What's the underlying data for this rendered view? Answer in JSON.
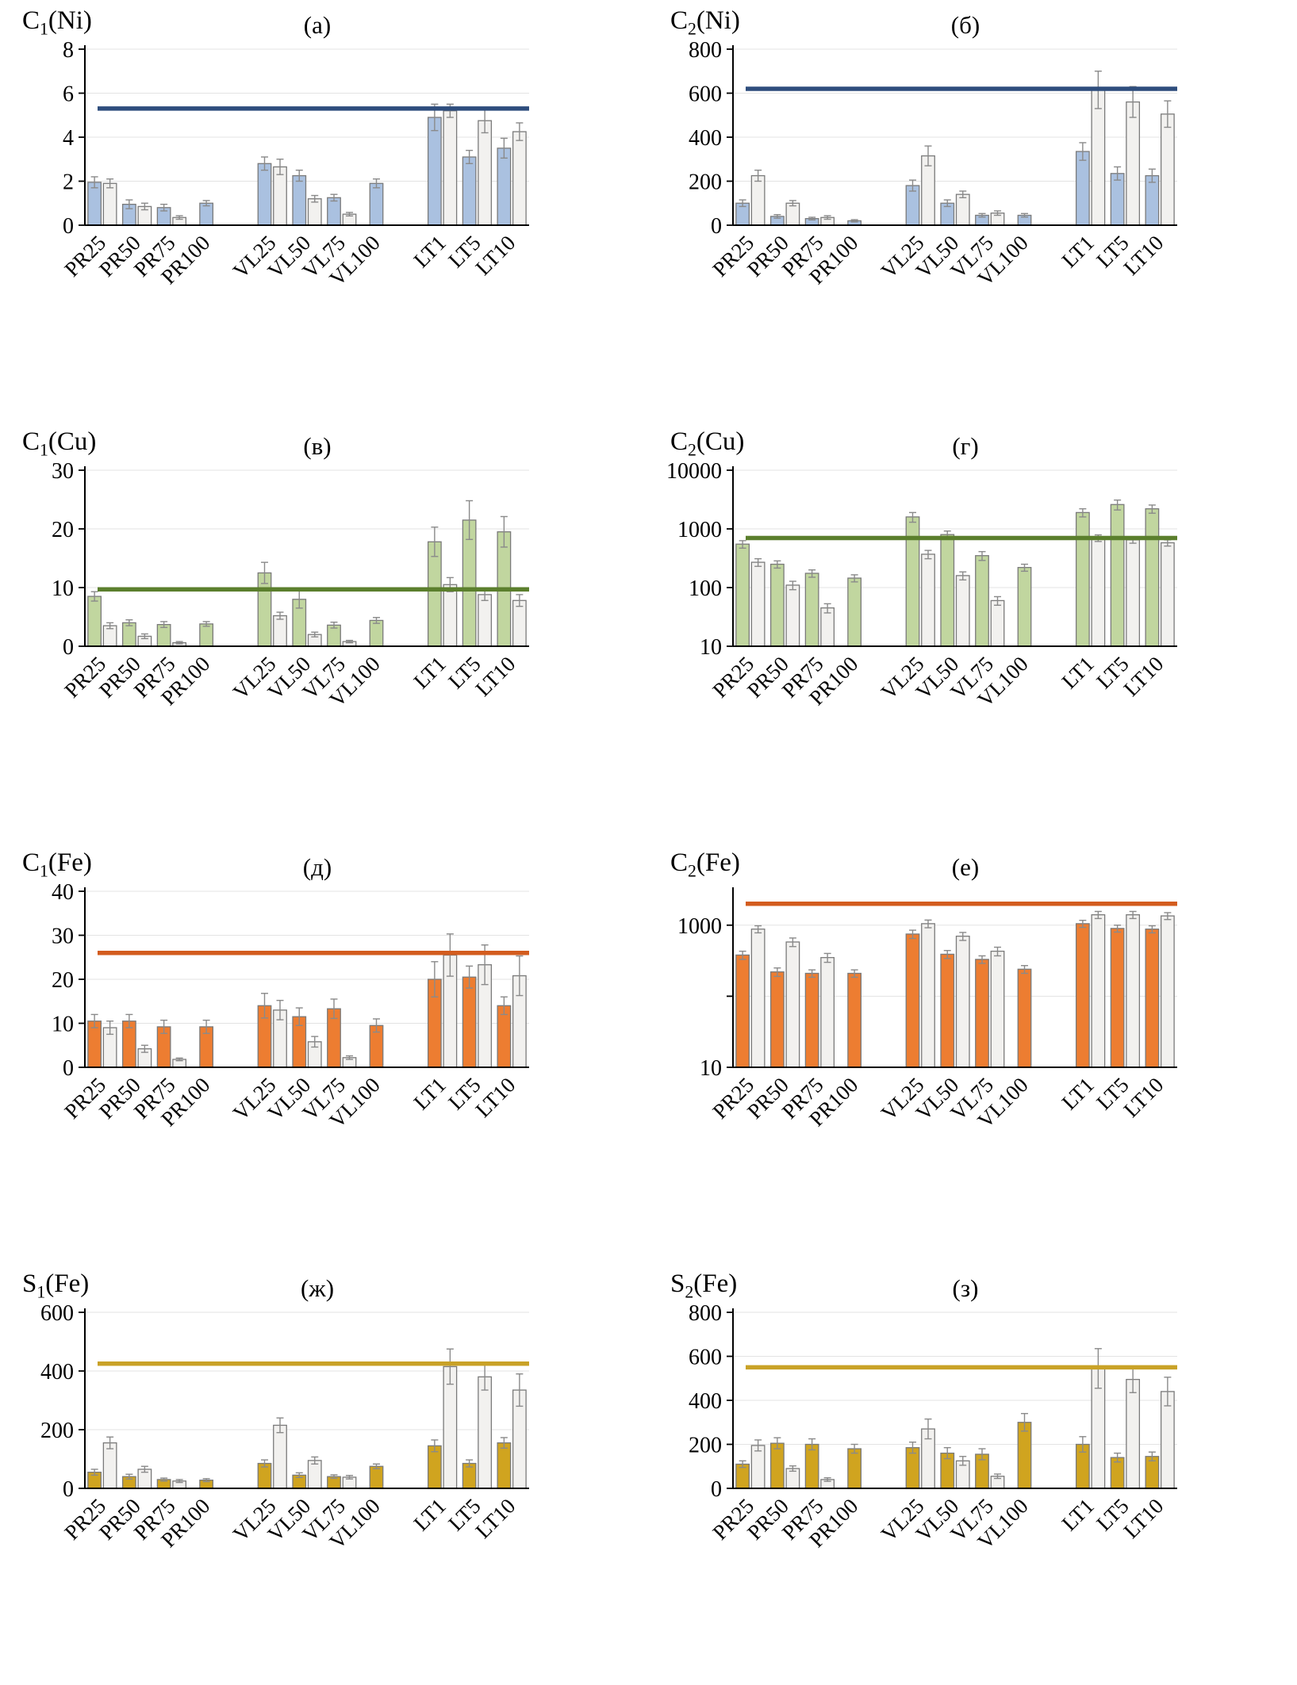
{
  "chart_data": [
    {
      "type": "bar",
      "panel_label": "(а)",
      "title": {
        "base": "C",
        "sub": "1",
        "rest": "(Ni)"
      },
      "scale": "linear",
      "ylim": [
        0,
        8
      ],
      "yticks": [
        0,
        2,
        4,
        6,
        8
      ],
      "ytick_labels": [
        "0",
        "2",
        "4",
        "6",
        "8"
      ],
      "bar_color": "#aac1e0",
      "bar2_color": "#f2f1ef",
      "ref_line": {
        "value": 5.3,
        "color": "#2e4d7d"
      },
      "categories": [
        "PR25",
        "PR50",
        "PR75",
        "PR100",
        "VL25",
        "VL50",
        "VL75",
        "VL100",
        "LT1",
        "LT5",
        "LT10"
      ],
      "series": [
        {
          "name": "s1",
          "values": [
            1.95,
            0.95,
            0.8,
            1.0,
            2.8,
            2.25,
            1.25,
            1.9,
            4.9,
            3.1,
            3.5
          ],
          "errors": [
            0.25,
            0.2,
            0.15,
            0.12,
            0.3,
            0.25,
            0.15,
            0.2,
            0.6,
            0.3,
            0.45
          ]
        },
        {
          "name": "s2",
          "values": [
            1.9,
            0.85,
            0.35,
            null,
            2.65,
            1.2,
            0.5,
            null,
            5.2,
            4.75,
            4.25
          ],
          "errors": [
            0.2,
            0.15,
            0.08,
            null,
            0.35,
            0.15,
            0.08,
            null,
            0.3,
            0.55,
            0.4
          ]
        }
      ]
    },
    {
      "type": "bar",
      "panel_label": "(б)",
      "title": {
        "base": "C",
        "sub": "2",
        "rest": "(Ni)"
      },
      "scale": "linear",
      "ylim": [
        0,
        800
      ],
      "yticks": [
        0,
        200,
        400,
        600,
        800
      ],
      "ytick_labels": [
        "0",
        "200",
        "400",
        "600",
        "800"
      ],
      "bar_color": "#aac1e0",
      "bar2_color": "#f2f1ef",
      "ref_line": {
        "value": 620,
        "color": "#2e4d7d"
      },
      "categories": [
        "PR25",
        "PR50",
        "PR75",
        "PR100",
        "VL25",
        "VL50",
        "VL75",
        "VL100",
        "LT1",
        "LT5",
        "LT10"
      ],
      "series": [
        {
          "name": "s1",
          "values": [
            100,
            40,
            30,
            20,
            180,
            100,
            45,
            45,
            335,
            235,
            225
          ],
          "errors": [
            15,
            8,
            6,
            5,
            25,
            15,
            8,
            8,
            40,
            30,
            30
          ]
        },
        {
          "name": "s2",
          "values": [
            225,
            100,
            35,
            null,
            315,
            140,
            55,
            null,
            615,
            560,
            505
          ],
          "errors": [
            25,
            12,
            8,
            null,
            45,
            15,
            10,
            null,
            85,
            70,
            60
          ]
        }
      ]
    },
    {
      "type": "bar",
      "panel_label": "(в)",
      "title": {
        "base": "C",
        "sub": "1",
        "rest": "(Cu)"
      },
      "scale": "linear",
      "ylim": [
        0,
        30
      ],
      "yticks": [
        0,
        10,
        20,
        30
      ],
      "ytick_labels": [
        "0",
        "10",
        "20",
        "30"
      ],
      "bar_color": "#c1d69f",
      "bar2_color": "#f2f1ef",
      "ref_line": {
        "value": 9.7,
        "color": "#5b7f2d"
      },
      "categories": [
        "PR25",
        "PR50",
        "PR75",
        "PR100",
        "VL25",
        "VL50",
        "VL75",
        "VL100",
        "LT1",
        "LT5",
        "LT10"
      ],
      "series": [
        {
          "name": "s1",
          "values": [
            8.5,
            4.0,
            3.7,
            3.8,
            12.5,
            8.0,
            3.6,
            4.4,
            17.8,
            21.5,
            19.5
          ],
          "errors": [
            0.8,
            0.5,
            0.5,
            0.4,
            1.8,
            1.5,
            0.5,
            0.5,
            2.5,
            3.3,
            2.6
          ]
        },
        {
          "name": "s2",
          "values": [
            3.5,
            1.7,
            0.6,
            null,
            5.2,
            2.0,
            0.8,
            null,
            10.5,
            8.8,
            7.8
          ],
          "errors": [
            0.5,
            0.4,
            0.2,
            null,
            0.6,
            0.4,
            0.2,
            null,
            1.2,
            1.0,
            1.0
          ]
        }
      ]
    },
    {
      "type": "bar",
      "panel_label": "(г)",
      "title": {
        "base": "C",
        "sub": "2",
        "rest": "(Cu)"
      },
      "scale": "log",
      "ylim": [
        10,
        10000
      ],
      "yticks": [
        10,
        100,
        1000,
        10000
      ],
      "ytick_labels": [
        "10",
        "100",
        "1000",
        "10000"
      ],
      "bar_color": "#c1d69f",
      "bar2_color": "#f2f1ef",
      "ref_line": {
        "value": 700,
        "color": "#5b7f2d"
      },
      "categories": [
        "PR25",
        "PR50",
        "PR75",
        "PR100",
        "VL25",
        "VL50",
        "VL75",
        "VL100",
        "LT1",
        "LT5",
        "LT10"
      ],
      "series": [
        {
          "name": "s1",
          "values": [
            550,
            250,
            175,
            145,
            1600,
            800,
            350,
            220,
            1900,
            2600,
            2200
          ],
          "errors": [
            80,
            35,
            25,
            20,
            300,
            120,
            60,
            30,
            300,
            500,
            350
          ]
        },
        {
          "name": "s2",
          "values": [
            270,
            110,
            45,
            null,
            370,
            160,
            60,
            null,
            700,
            650,
            580
          ],
          "errors": [
            40,
            18,
            8,
            null,
            60,
            25,
            10,
            null,
            90,
            80,
            70
          ]
        }
      ]
    },
    {
      "type": "bar",
      "panel_label": "(д)",
      "title": {
        "base": "C",
        "sub": "1",
        "rest": "(Fe)"
      },
      "scale": "linear",
      "ylim": [
        0,
        40
      ],
      "yticks": [
        0,
        10,
        20,
        30,
        40
      ],
      "ytick_labels": [
        "0",
        "10",
        "20",
        "30",
        "40"
      ],
      "bar_color": "#ed7d31",
      "bar2_color": "#f2f1ef",
      "ref_line": {
        "value": 26,
        "color": "#d35c1e"
      },
      "categories": [
        "PR25",
        "PR50",
        "PR75",
        "PR100",
        "VL25",
        "VL50",
        "VL75",
        "VL100",
        "LT1",
        "LT5",
        "LT10"
      ],
      "series": [
        {
          "name": "s1",
          "values": [
            10.5,
            10.5,
            9.2,
            9.2,
            14.0,
            11.5,
            13.3,
            9.5,
            20.0,
            20.5,
            14.0
          ],
          "errors": [
            1.5,
            1.5,
            1.5,
            1.5,
            2.8,
            2.0,
            2.2,
            1.5,
            4.0,
            2.5,
            2.0
          ]
        },
        {
          "name": "s2",
          "values": [
            9.0,
            4.2,
            1.8,
            null,
            13.0,
            5.8,
            2.2,
            null,
            25.5,
            23.3,
            20.8
          ],
          "errors": [
            1.5,
            0.8,
            0.3,
            null,
            2.2,
            1.2,
            0.4,
            null,
            4.8,
            4.5,
            4.5
          ]
        }
      ]
    },
    {
      "type": "bar",
      "panel_label": "(е)",
      "title": {
        "base": "C",
        "sub": "2",
        "rest": "(Fe)"
      },
      "scale": "log",
      "ylim": [
        10,
        3000
      ],
      "yticks": [
        10,
        100,
        1000
      ],
      "ytick_labels": [
        "10",
        "",
        "1000"
      ],
      "bar_color": "#ed7d31",
      "bar2_color": "#f2f1ef",
      "ref_line": {
        "value": 2000,
        "color": "#d35c1e"
      },
      "categories": [
        "PR25",
        "PR50",
        "PR75",
        "PR100",
        "VL25",
        "VL50",
        "VL75",
        "VL100",
        "LT1",
        "LT5",
        "LT10"
      ],
      "series": [
        {
          "name": "s1",
          "values": [
            380,
            220,
            210,
            210,
            750,
            390,
            330,
            240,
            1050,
            900,
            880
          ],
          "errors": [
            50,
            30,
            25,
            25,
            100,
            50,
            40,
            30,
            120,
            100,
            100
          ]
        },
        {
          "name": "s2",
          "values": [
            880,
            580,
            350,
            null,
            1050,
            700,
            430,
            null,
            1400,
            1400,
            1350
          ],
          "errors": [
            100,
            80,
            50,
            null,
            130,
            90,
            60,
            null,
            160,
            160,
            150
          ]
        }
      ]
    },
    {
      "type": "bar",
      "panel_label": "(ж)",
      "title": {
        "base": "S",
        "sub": "1",
        "rest": "(Fe)"
      },
      "scale": "linear",
      "ylim": [
        0,
        600
      ],
      "yticks": [
        0,
        200,
        400,
        600
      ],
      "ytick_labels": [
        "0",
        "200",
        "400",
        "600"
      ],
      "bar_color": "#d0a41f",
      "bar2_color": "#f2f1ef",
      "ref_line": {
        "value": 425,
        "color": "#c9a227"
      },
      "categories": [
        "PR25",
        "PR50",
        "PR75",
        "PR100",
        "VL25",
        "VL50",
        "VL75",
        "VL100",
        "LT1",
        "LT5",
        "LT10"
      ],
      "series": [
        {
          "name": "s1",
          "values": [
            55,
            40,
            30,
            28,
            85,
            45,
            40,
            75,
            145,
            85,
            155
          ],
          "errors": [
            10,
            8,
            5,
            5,
            12,
            8,
            6,
            8,
            20,
            12,
            18
          ]
        },
        {
          "name": "s2",
          "values": [
            155,
            65,
            25,
            null,
            215,
            95,
            38,
            null,
            415,
            380,
            335
          ],
          "errors": [
            20,
            10,
            5,
            null,
            25,
            12,
            6,
            null,
            60,
            45,
            55
          ]
        }
      ]
    },
    {
      "type": "bar",
      "panel_label": "(з)",
      "title": {
        "base": "S",
        "sub": "2",
        "rest": "(Fe)"
      },
      "scale": "linear",
      "ylim": [
        0,
        800
      ],
      "yticks": [
        0,
        200,
        400,
        600,
        800
      ],
      "ytick_labels": [
        "0",
        "200",
        "400",
        "600",
        "800"
      ],
      "bar_color": "#d0a41f",
      "bar2_color": "#f2f1ef",
      "ref_line": {
        "value": 550,
        "color": "#c9a227"
      },
      "categories": [
        "PR25",
        "PR50",
        "PR75",
        "PR100",
        "VL25",
        "VL50",
        "VL75",
        "VL100",
        "LT1",
        "LT5",
        "LT10"
      ],
      "series": [
        {
          "name": "s1",
          "values": [
            110,
            205,
            200,
            180,
            185,
            160,
            155,
            300,
            200,
            140,
            145
          ],
          "errors": [
            15,
            25,
            25,
            20,
            25,
            25,
            25,
            40,
            35,
            20,
            20
          ]
        },
        {
          "name": "s2",
          "values": [
            195,
            90,
            40,
            null,
            270,
            125,
            55,
            null,
            545,
            495,
            440
          ],
          "errors": [
            25,
            12,
            8,
            null,
            45,
            20,
            10,
            null,
            90,
            60,
            65
          ]
        }
      ]
    }
  ]
}
